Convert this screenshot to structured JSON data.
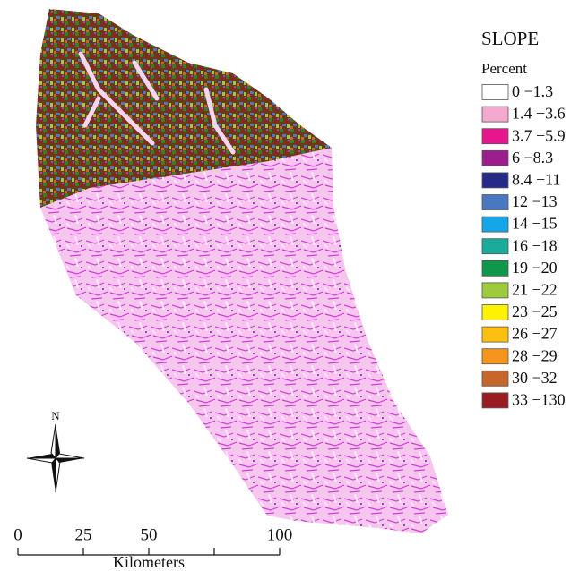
{
  "legend": {
    "title": "SLOPE",
    "subtitle": "Percent",
    "items": [
      {
        "label": "0 −1.3",
        "color": "#ffffff"
      },
      {
        "label": "1.4 −3.6",
        "color": "#f4a9cf"
      },
      {
        "label": "3.7 −5.9",
        "color": "#e8168c"
      },
      {
        "label": "6 −8.3",
        "color": "#9b1e8c"
      },
      {
        "label": "8.4 −11",
        "color": "#262b8a"
      },
      {
        "label": "12 −13",
        "color": "#4a78c0"
      },
      {
        "label": "14 −15",
        "color": "#14a6e6"
      },
      {
        "label": "16 −18",
        "color": "#1aab9b"
      },
      {
        "label": "19 −20",
        "color": "#10984a"
      },
      {
        "label": "21 −22",
        "color": "#9ccb3b"
      },
      {
        "label": "23 −25",
        "color": "#fff200"
      },
      {
        "label": "26 −27",
        "color": "#fdbf12"
      },
      {
        "label": "28 −29",
        "color": "#f7941d"
      },
      {
        "label": "30 −32",
        "color": "#c8652b"
      },
      {
        "label": "33 −130",
        "color": "#9a1c22"
      }
    ]
  },
  "north_arrow": {
    "label": "N"
  },
  "scale_bar": {
    "ticks": [
      0,
      25,
      50,
      100
    ],
    "unit": "Kilometers"
  }
}
